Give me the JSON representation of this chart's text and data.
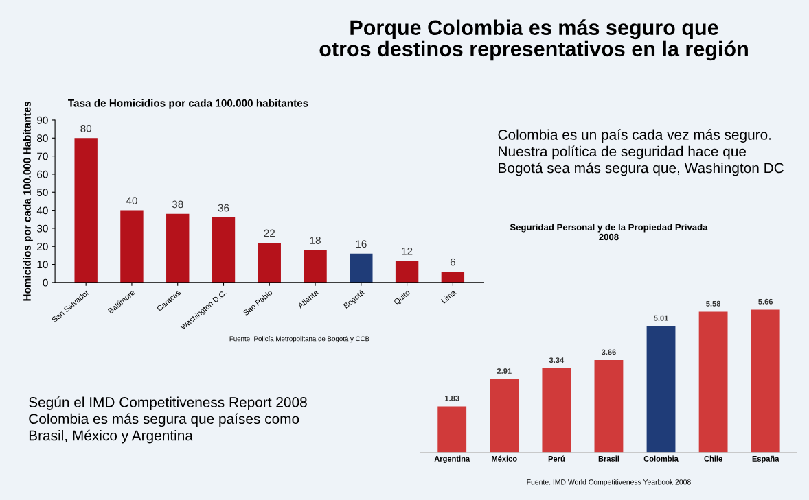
{
  "chart_data": [
    {
      "type": "other",
      "title": "Porque Colombia es más seguro que\notros destinos representativos en la región",
      "annotations": [
        "Colombia es un país cada vez más seguro.\nNuestra política de seguridad hace que\nBogotá sea más segura que, Washington DC",
        "Según el IMD Competitiveness Report 2008\nColombia es más segura que países como\nBrasil, México y Argentina"
      ]
    },
    {
      "type": "bar",
      "title": "Tasa de Homicidios por cada 100.000 habitantes",
      "ylabel": "Homicidios por cada 100.000 Habitantes",
      "categories": [
        "San Salvador",
        "Baltimore",
        "Caracas",
        "Washington D.C.",
        "Sao Pablo",
        "Atlanta",
        "Bogotá",
        "Quito",
        "Lima"
      ],
      "values": [
        80,
        40,
        38,
        36,
        22,
        18,
        16,
        12,
        6
      ],
      "colors": [
        "#b5121b",
        "#b5121b",
        "#b5121b",
        "#b5121b",
        "#b5121b",
        "#b5121b",
        "#1f3c78",
        "#b5121b",
        "#b5121b"
      ],
      "ylim": [
        0,
        90
      ],
      "yticks": [
        0,
        10,
        20,
        30,
        40,
        50,
        60,
        70,
        80,
        90
      ],
      "data_labels": true,
      "grid": false,
      "annotations": [
        "Fuente: Policía Metropolitana de Bogotá y CCB"
      ]
    },
    {
      "type": "bar",
      "title": "Seguridad Personal y de la Propiedad Privada\n2008",
      "categories": [
        "Argentina",
        "México",
        "Perú",
        "Brasil",
        "Colombia",
        "Chile",
        "España"
      ],
      "values": [
        1.83,
        2.91,
        3.34,
        3.66,
        5.01,
        5.58,
        5.66
      ],
      "colors": [
        "#d03a3a",
        "#d03a3a",
        "#d03a3a",
        "#d03a3a",
        "#1f3c78",
        "#d03a3a",
        "#d03a3a"
      ],
      "data_labels": true,
      "grid": false,
      "annotations": [
        "Fuente: IMD World Competitiveness Yearbook 2008"
      ]
    }
  ]
}
